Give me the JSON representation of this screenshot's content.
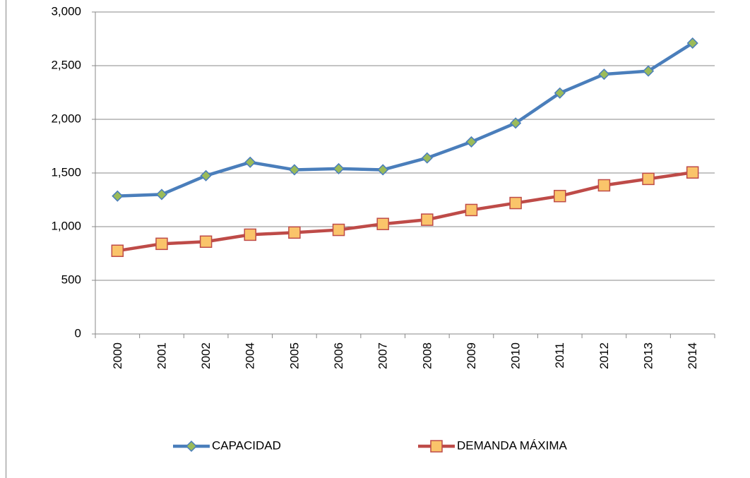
{
  "chart_data": {
    "type": "line",
    "categories": [
      "2000",
      "2001",
      "2002",
      "2004",
      "2005",
      "2006",
      "2007",
      "2008",
      "2009",
      "2010",
      "2011",
      "2012",
      "2013",
      "2014"
    ],
    "series": [
      {
        "name": "CAPACIDAD",
        "color": "#4a7ebb",
        "marker": "diamond",
        "marker_color": "#9bbb59",
        "values": [
          1285,
          1300,
          1475,
          1600,
          1530,
          1540,
          1530,
          1640,
          1790,
          1965,
          2245,
          2420,
          2450,
          2710
        ]
      },
      {
        "name": "DEMANDA MÁXIMA",
        "color": "#be4b48",
        "marker": "square",
        "marker_color": "#fac46a",
        "values": [
          775,
          840,
          860,
          925,
          945,
          970,
          1025,
          1065,
          1155,
          1220,
          1285,
          1385,
          1445,
          1505
        ]
      }
    ],
    "ylim": [
      0,
      3000
    ],
    "yticks": [
      0,
      500,
      {
        "value": 1000,
        "label": "1,000"
      },
      {
        "value": 1500,
        "label": "1,500"
      },
      {
        "value": 2000,
        "label": "2,000"
      },
      {
        "value": 2500,
        "label": "2,500"
      },
      {
        "value": 3000,
        "label": "3,000"
      }
    ],
    "grid": true,
    "legend": "bottom"
  }
}
